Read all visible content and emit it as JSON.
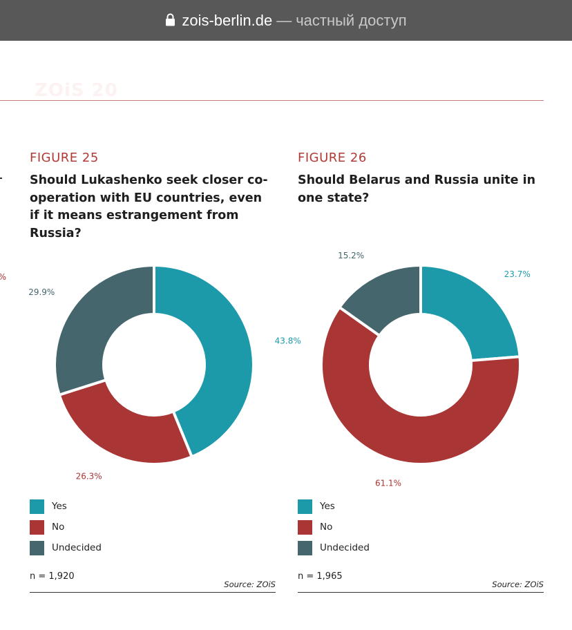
{
  "browser": {
    "domain": "zois-berlin.de",
    "separator": "—",
    "access_label": "частный доступ"
  },
  "page": {
    "faded_heading": "ZOiS 20"
  },
  "left_edge": {
    "partial_percent": "%"
  },
  "colors": {
    "yes": "#1d9aaa",
    "no": "#a93535",
    "undecided": "#45666c",
    "accent": "#b03a36",
    "topbar": "#585858"
  },
  "figures": [
    {
      "number": "FIGURE 25",
      "title": "Should Lukashenko seek closer co-operation with EU countries, even if it means estrangement from Russia?",
      "legend": [
        "Yes",
        "No",
        "Undecided"
      ],
      "n": "n = 1,920",
      "source": "Source: ZOiS"
    },
    {
      "number": "FIGURE 26",
      "title": "Should Belarus and Russia unite in one state?",
      "legend": [
        "Yes",
        "No",
        "Undecided"
      ],
      "n": "n = 1,965",
      "source": "Source: ZOiS"
    }
  ],
  "chart_data": [
    {
      "type": "pie",
      "title": "Should Lukashenko seek closer co-operation with EU countries, even if it means estrangement from Russia?",
      "categories": [
        "Yes",
        "No",
        "Undecided"
      ],
      "values": [
        43.8,
        26.3,
        29.9
      ],
      "labels": [
        "43.8%",
        "26.3%",
        "29.9%"
      ]
    },
    {
      "type": "pie",
      "title": "Should Belarus and Russia unite in one state?",
      "categories": [
        "Yes",
        "No",
        "Undecided"
      ],
      "values": [
        23.7,
        61.1,
        15.2
      ],
      "labels": [
        "23.7%",
        "61.1%",
        "15.2%"
      ]
    }
  ]
}
